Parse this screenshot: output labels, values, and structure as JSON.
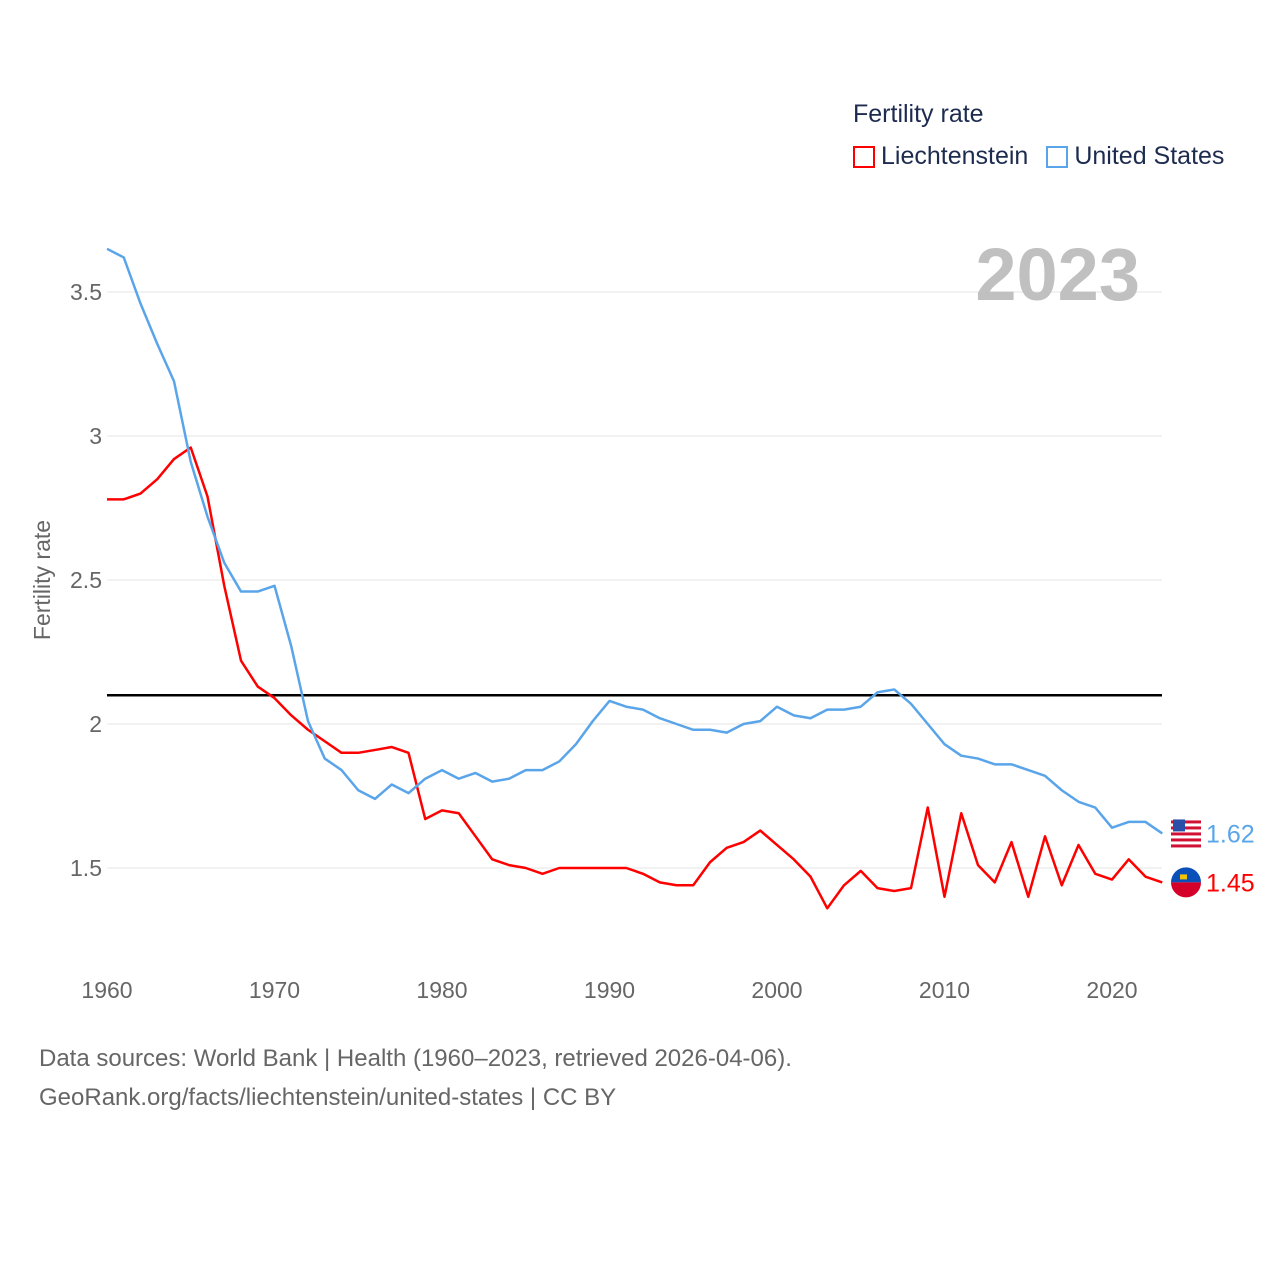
{
  "chart_data": {
    "type": "line",
    "title": "Fertility rate",
    "ylabel": "Fertility rate",
    "xlabel": "",
    "year_label": "2023",
    "xlim": [
      1960,
      2023
    ],
    "ylim": [
      1.3,
      3.7
    ],
    "x_ticks": [
      "1960",
      "1970",
      "1980",
      "1990",
      "2000",
      "2010",
      "2020"
    ],
    "y_ticks": [
      "1.5",
      "2",
      "2.5",
      "3",
      "3.5"
    ],
    "grid": true,
    "legend_position": "top-right",
    "reference_line": 2.1,
    "x": [
      1960,
      1961,
      1962,
      1963,
      1964,
      1965,
      1966,
      1967,
      1968,
      1969,
      1970,
      1971,
      1972,
      1973,
      1974,
      1975,
      1976,
      1977,
      1978,
      1979,
      1980,
      1981,
      1982,
      1983,
      1984,
      1985,
      1986,
      1987,
      1988,
      1989,
      1990,
      1991,
      1992,
      1993,
      1994,
      1995,
      1996,
      1997,
      1998,
      1999,
      2000,
      2001,
      2002,
      2003,
      2004,
      2005,
      2006,
      2007,
      2008,
      2009,
      2010,
      2011,
      2012,
      2013,
      2014,
      2015,
      2016,
      2017,
      2018,
      2019,
      2020,
      2021,
      2022,
      2023
    ],
    "series": [
      {
        "name": "Liechtenstein",
        "color": "#ff0000",
        "end_label": "1.45",
        "values": [
          2.78,
          2.78,
          2.8,
          2.85,
          2.92,
          2.96,
          2.79,
          2.48,
          2.22,
          2.13,
          2.09,
          2.03,
          1.98,
          1.94,
          1.9,
          1.9,
          1.91,
          1.92,
          1.9,
          1.67,
          1.7,
          1.69,
          1.61,
          1.53,
          1.51,
          1.5,
          1.48,
          1.5,
          1.5,
          1.5,
          1.5,
          1.5,
          1.48,
          1.45,
          1.44,
          1.44,
          1.52,
          1.57,
          1.59,
          1.63,
          1.58,
          1.53,
          1.47,
          1.36,
          1.44,
          1.49,
          1.43,
          1.42,
          1.43,
          1.71,
          1.4,
          1.69,
          1.51,
          1.45,
          1.59,
          1.4,
          1.61,
          1.44,
          1.58,
          1.48,
          1.46,
          1.53,
          1.47,
          1.45
        ]
      },
      {
        "name": "United States",
        "color": "#5aa5ea",
        "end_label": "1.62",
        "values": [
          3.65,
          3.62,
          3.46,
          3.32,
          3.19,
          2.91,
          2.72,
          2.56,
          2.46,
          2.46,
          2.48,
          2.27,
          2.01,
          1.88,
          1.84,
          1.77,
          1.74,
          1.79,
          1.76,
          1.81,
          1.84,
          1.81,
          1.83,
          1.8,
          1.81,
          1.84,
          1.84,
          1.87,
          1.93,
          2.01,
          2.08,
          2.06,
          2.05,
          2.02,
          2.0,
          1.98,
          1.98,
          1.97,
          2.0,
          2.01,
          2.06,
          2.03,
          2.02,
          2.05,
          2.05,
          2.06,
          2.11,
          2.12,
          2.07,
          2.0,
          1.93,
          1.89,
          1.88,
          1.86,
          1.86,
          1.84,
          1.82,
          1.77,
          1.73,
          1.71,
          1.64,
          1.66,
          1.66,
          1.62
        ]
      }
    ]
  },
  "footer": {
    "line1": "Data sources: World Bank | Health (1960–2023, retrieved 2026-04-06).",
    "line2": "GeoRank.org/facts/liechtenstein/united-states | CC BY"
  }
}
